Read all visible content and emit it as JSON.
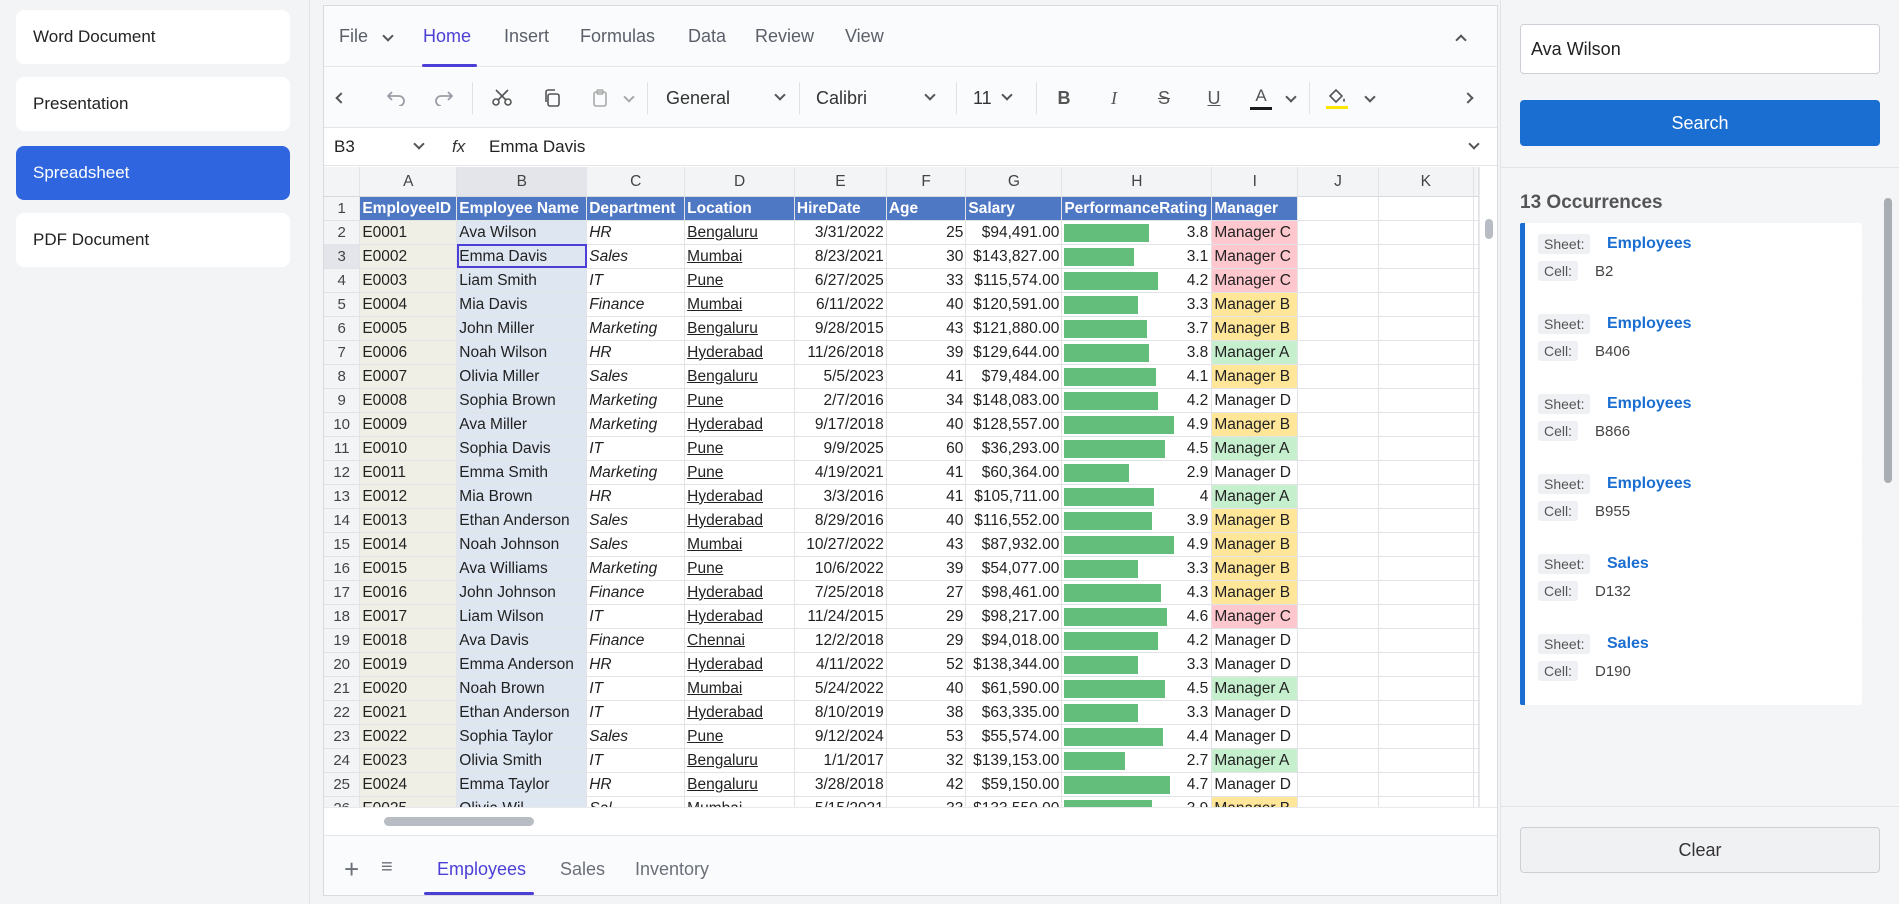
{
  "nav": [
    "Word Document",
    "Presentation",
    "Spreadsheet",
    "PDF Document"
  ],
  "ribbon": {
    "tabs": [
      "File",
      "Home",
      "Insert",
      "Formulas",
      "Data",
      "Review",
      "View"
    ],
    "active": "Home"
  },
  "toolbar": {
    "number_format": "General",
    "font": "Calibri",
    "font_size": "11",
    "font_color": "#1b1b1b",
    "fill_color": "#ffe600"
  },
  "formula": {
    "cell": "B3",
    "fx": "fx",
    "value": "Emma Davis"
  },
  "grid": {
    "columns": [
      "A",
      "B",
      "C",
      "D",
      "E",
      "F",
      "G",
      "H",
      "I",
      "J",
      "K"
    ],
    "header": [
      "EmployeeID",
      "Employee Name",
      "Department",
      "Location",
      "HireDate",
      "Age",
      "Salary",
      "PerformanceRating",
      "Manager"
    ],
    "rows": [
      [
        "E0001",
        "Ava Wilson",
        "HR",
        "Bengaluru",
        "3/31/2022",
        "25",
        "$94,491.00",
        "3.8",
        "Manager C"
      ],
      [
        "E0002",
        "Emma Davis",
        "Sales",
        "Mumbai",
        "8/23/2021",
        "30",
        "$143,827.00",
        "3.1",
        "Manager C"
      ],
      [
        "E0003",
        "Liam Smith",
        "IT",
        "Pune",
        "6/27/2025",
        "33",
        "$115,574.00",
        "4.2",
        "Manager C"
      ],
      [
        "E0004",
        "Mia Davis",
        "Finance",
        "Mumbai",
        "6/11/2022",
        "40",
        "$120,591.00",
        "3.3",
        "Manager B"
      ],
      [
        "E0005",
        "John Miller",
        "Marketing",
        "Bengaluru",
        "9/28/2015",
        "43",
        "$121,880.00",
        "3.7",
        "Manager B"
      ],
      [
        "E0006",
        "Noah Wilson",
        "HR",
        "Hyderabad",
        "11/26/2018",
        "39",
        "$129,644.00",
        "3.8",
        "Manager A"
      ],
      [
        "E0007",
        "Olivia Miller",
        "Sales",
        "Bengaluru",
        "5/5/2023",
        "41",
        "$79,484.00",
        "4.1",
        "Manager B"
      ],
      [
        "E0008",
        "Sophia Brown",
        "Marketing",
        "Pune",
        "2/7/2016",
        "34",
        "$148,083.00",
        "4.2",
        "Manager D"
      ],
      [
        "E0009",
        "Ava Miller",
        "Marketing",
        "Hyderabad",
        "9/17/2018",
        "40",
        "$128,557.00",
        "4.9",
        "Manager B"
      ],
      [
        "E0010",
        "Sophia Davis",
        "IT",
        "Pune",
        "9/9/2025",
        "60",
        "$36,293.00",
        "4.5",
        "Manager A"
      ],
      [
        "E0011",
        "Emma Smith",
        "Marketing",
        "Pune",
        "4/19/2021",
        "41",
        "$60,364.00",
        "2.9",
        "Manager D"
      ],
      [
        "E0012",
        "Mia Brown",
        "HR",
        "Hyderabad",
        "3/3/2016",
        "41",
        "$105,711.00",
        "4",
        "Manager A"
      ],
      [
        "E0013",
        "Ethan Anderson",
        "Sales",
        "Hyderabad",
        "8/29/2016",
        "40",
        "$116,552.00",
        "3.9",
        "Manager B"
      ],
      [
        "E0014",
        "Noah Johnson",
        "Sales",
        "Mumbai",
        "10/27/2022",
        "43",
        "$87,932.00",
        "4.9",
        "Manager B"
      ],
      [
        "E0015",
        "Ava Williams",
        "Marketing",
        "Pune",
        "10/6/2022",
        "39",
        "$54,077.00",
        "3.3",
        "Manager B"
      ],
      [
        "E0016",
        "John Johnson",
        "Finance",
        "Hyderabad",
        "7/25/2018",
        "27",
        "$98,461.00",
        "4.3",
        "Manager B"
      ],
      [
        "E0017",
        "Liam Wilson",
        "IT",
        "Hyderabad",
        "11/24/2015",
        "29",
        "$98,217.00",
        "4.6",
        "Manager C"
      ],
      [
        "E0018",
        "Ava Davis",
        "Finance",
        "Chennai",
        "12/2/2018",
        "29",
        "$94,018.00",
        "4.2",
        "Manager D"
      ],
      [
        "E0019",
        "Emma Anderson",
        "HR",
        "Hyderabad",
        "4/11/2022",
        "52",
        "$138,344.00",
        "3.3",
        "Manager D"
      ],
      [
        "E0020",
        "Noah Brown",
        "IT",
        "Mumbai",
        "5/24/2022",
        "40",
        "$61,590.00",
        "4.5",
        "Manager A"
      ],
      [
        "E0021",
        "Ethan Anderson",
        "IT",
        "Hyderabad",
        "8/10/2019",
        "38",
        "$63,335.00",
        "3.3",
        "Manager D"
      ],
      [
        "E0022",
        "Sophia Taylor",
        "Sales",
        "Pune",
        "9/12/2024",
        "53",
        "$55,574.00",
        "4.4",
        "Manager D"
      ],
      [
        "E0023",
        "Olivia Smith",
        "IT",
        "Bengaluru",
        "1/1/2017",
        "32",
        "$139,153.00",
        "2.7",
        "Manager A"
      ],
      [
        "E0024",
        "Emma Taylor",
        "HR",
        "Bengaluru",
        "3/28/2018",
        "42",
        "$59,150.00",
        "4.7",
        "Manager D"
      ],
      [
        "E0025",
        "Olivia Wil...",
        "Sal...",
        "Mumbai",
        "5/15/2021",
        "33",
        "$133,550.00",
        "3.9",
        "Manager B"
      ]
    ],
    "manager_colors": {
      "Manager A": "#c6efce",
      "Manager B": "#ffe699",
      "Manager C": "#ffc7ce",
      "Manager D": "#ffffff"
    }
  },
  "sheets": [
    "Employees",
    "Sales",
    "Inventory"
  ],
  "active_sheet": "Employees",
  "search": {
    "value": "Ava Wilson",
    "button": "Search",
    "clear": "Clear",
    "sheet_label": "Sheet:",
    "cell_label": "Cell:"
  },
  "occurrences": {
    "title": "13 Occurrences",
    "items": [
      {
        "sheet": "Employees",
        "cell": "B2"
      },
      {
        "sheet": "Employees",
        "cell": "B406"
      },
      {
        "sheet": "Employees",
        "cell": "B866"
      },
      {
        "sheet": "Employees",
        "cell": "B955"
      },
      {
        "sheet": "Sales",
        "cell": "D132"
      },
      {
        "sheet": "Sales",
        "cell": "D190"
      }
    ]
  }
}
